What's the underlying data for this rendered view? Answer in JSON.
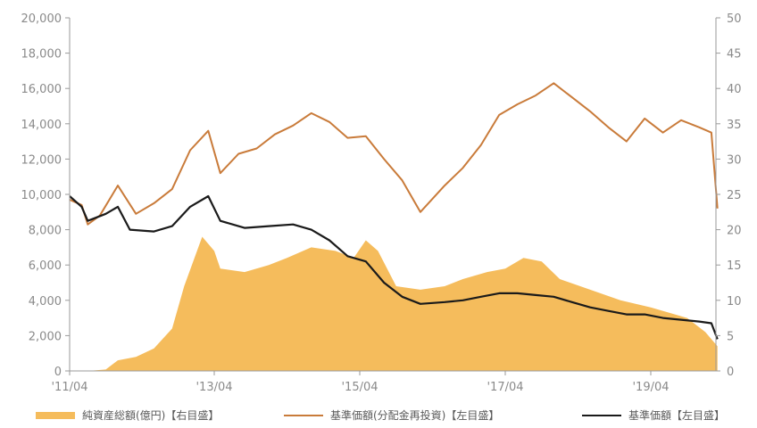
{
  "chart_data": {
    "type": "area+line",
    "x_ticks": [
      "'11/04",
      "'13/04",
      "'15/04",
      "'17/04",
      "'19/04"
    ],
    "y_left": {
      "range": [
        0,
        20000
      ],
      "ticks": [
        "0",
        "2,000",
        "4,000",
        "6,000",
        "8,000",
        "10,000",
        "12,000",
        "14,000",
        "16,000",
        "18,000",
        "20,000"
      ]
    },
    "y_right": {
      "range": [
        0,
        50
      ],
      "ticks": [
        "0",
        "5",
        "10",
        "15",
        "20",
        "25",
        "30",
        "35",
        "40",
        "45",
        "50"
      ]
    },
    "grid": false,
    "legend_position": "bottom",
    "series": [
      {
        "name": "純資産総額(億円)【右目盛】",
        "type": "area",
        "axis": "right",
        "color": "#f5bc5c",
        "points": [
          [
            "2011-04",
            0
          ],
          [
            "2011-07",
            0
          ],
          [
            "2011-10",
            0.2
          ],
          [
            "2011-12",
            1.5
          ],
          [
            "2012-03",
            2
          ],
          [
            "2012-06",
            3.2
          ],
          [
            "2012-09",
            6
          ],
          [
            "2012-11",
            12
          ],
          [
            "2013-02",
            19
          ],
          [
            "2013-04",
            17
          ],
          [
            "2013-05",
            14.5
          ],
          [
            "2013-09",
            14
          ],
          [
            "2014-01",
            15
          ],
          [
            "2014-04",
            16
          ],
          [
            "2014-08",
            17.5
          ],
          [
            "2014-12",
            17
          ],
          [
            "2015-03",
            16
          ],
          [
            "2015-05",
            18.5
          ],
          [
            "2015-07",
            17
          ],
          [
            "2015-10",
            12
          ],
          [
            "2016-02",
            11.5
          ],
          [
            "2016-06",
            12
          ],
          [
            "2016-09",
            13
          ],
          [
            "2017-01",
            14
          ],
          [
            "2017-04",
            14.5
          ],
          [
            "2017-07",
            16
          ],
          [
            "2017-10",
            15.5
          ],
          [
            "2018-01",
            13
          ],
          [
            "2018-06",
            11.5
          ],
          [
            "2018-11",
            10
          ],
          [
            "2019-04",
            9
          ],
          [
            "2019-10",
            7.5
          ],
          [
            "2020-01",
            5.5
          ],
          [
            "2020-03",
            3.5
          ]
        ]
      },
      {
        "name": "基準価額(分配金再投資)【左目盛】",
        "type": "line",
        "axis": "left",
        "color": "#c97b3a",
        "points": [
          [
            "2011-04",
            9700
          ],
          [
            "2011-06",
            9400
          ],
          [
            "2011-07",
            8300
          ],
          [
            "2011-09",
            8800
          ],
          [
            "2011-12",
            10500
          ],
          [
            "2012-03",
            8900
          ],
          [
            "2012-06",
            9500
          ],
          [
            "2012-09",
            10300
          ],
          [
            "2012-12",
            12500
          ],
          [
            "2013-03",
            13600
          ],
          [
            "2013-05",
            11200
          ],
          [
            "2013-08",
            12300
          ],
          [
            "2013-11",
            12600
          ],
          [
            "2014-02",
            13400
          ],
          [
            "2014-05",
            13900
          ],
          [
            "2014-08",
            14600
          ],
          [
            "2014-11",
            14100
          ],
          [
            "2015-02",
            13200
          ],
          [
            "2015-05",
            13300
          ],
          [
            "2015-08",
            12000
          ],
          [
            "2015-11",
            10800
          ],
          [
            "2016-02",
            9000
          ],
          [
            "2016-06",
            10500
          ],
          [
            "2016-09",
            11500
          ],
          [
            "2016-12",
            12800
          ],
          [
            "2017-03",
            14500
          ],
          [
            "2017-06",
            15100
          ],
          [
            "2017-09",
            15600
          ],
          [
            "2017-12",
            16300
          ],
          [
            "2018-03",
            15500
          ],
          [
            "2018-06",
            14700
          ],
          [
            "2018-09",
            13800
          ],
          [
            "2018-12",
            13000
          ],
          [
            "2019-03",
            14300
          ],
          [
            "2019-06",
            13500
          ],
          [
            "2019-09",
            14200
          ],
          [
            "2019-12",
            13800
          ],
          [
            "2020-02",
            13500
          ],
          [
            "2020-03",
            9200
          ]
        ]
      },
      {
        "name": "基準価額【左目盛】",
        "type": "line",
        "axis": "left",
        "color": "#1a1a1a",
        "points": [
          [
            "2011-04",
            9900
          ],
          [
            "2011-06",
            9300
          ],
          [
            "2011-07",
            8500
          ],
          [
            "2011-10",
            8900
          ],
          [
            "2011-12",
            9300
          ],
          [
            "2012-02",
            8000
          ],
          [
            "2012-06",
            7900
          ],
          [
            "2012-09",
            8200
          ],
          [
            "2012-12",
            9300
          ],
          [
            "2013-03",
            9900
          ],
          [
            "2013-05",
            8500
          ],
          [
            "2013-09",
            8100
          ],
          [
            "2014-01",
            8200
          ],
          [
            "2014-05",
            8300
          ],
          [
            "2014-08",
            8000
          ],
          [
            "2014-11",
            7400
          ],
          [
            "2015-02",
            6500
          ],
          [
            "2015-05",
            6200
          ],
          [
            "2015-08",
            5000
          ],
          [
            "2015-11",
            4200
          ],
          [
            "2016-02",
            3800
          ],
          [
            "2016-06",
            3900
          ],
          [
            "2016-09",
            4000
          ],
          [
            "2016-12",
            4200
          ],
          [
            "2017-03",
            4400
          ],
          [
            "2017-06",
            4400
          ],
          [
            "2017-09",
            4300
          ],
          [
            "2017-12",
            4200
          ],
          [
            "2018-03",
            3900
          ],
          [
            "2018-06",
            3600
          ],
          [
            "2018-09",
            3400
          ],
          [
            "2018-12",
            3200
          ],
          [
            "2019-03",
            3200
          ],
          [
            "2019-06",
            3000
          ],
          [
            "2019-09",
            2900
          ],
          [
            "2019-12",
            2800
          ],
          [
            "2020-02",
            2700
          ],
          [
            "2020-03",
            1800
          ]
        ]
      }
    ]
  }
}
